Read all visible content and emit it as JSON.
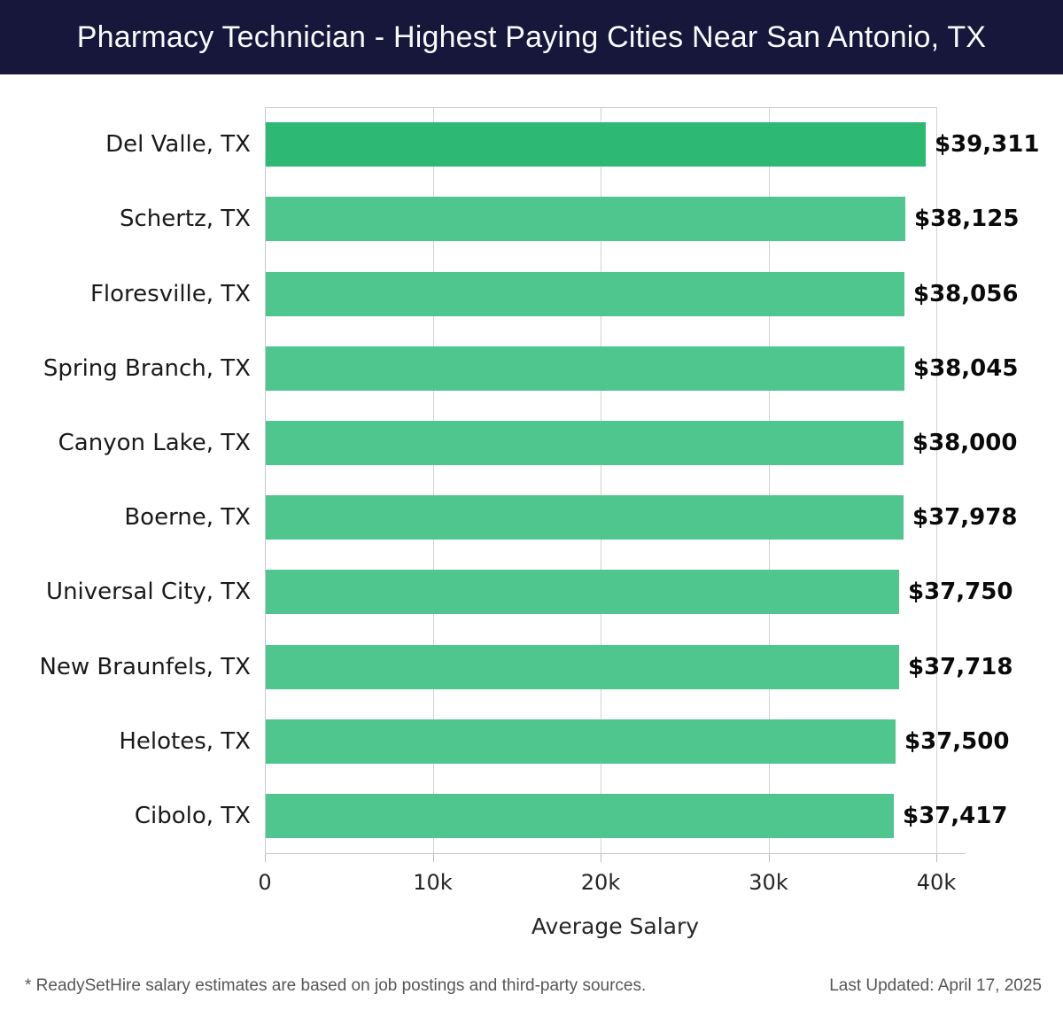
{
  "header": {
    "title": "Pharmacy Technician - Highest Paying Cities Near San Antonio, TX",
    "bg_color": "#16173a",
    "text_color": "#fafaff"
  },
  "chart_data": {
    "type": "bar",
    "orientation": "horizontal",
    "categories": [
      "Del Valle, TX",
      "Schertz, TX",
      "Floresville, TX",
      "Spring Branch, TX",
      "Canyon Lake, TX",
      "Boerne, TX",
      "Universal City, TX",
      "New Braunfels, TX",
      "Helotes, TX",
      "Cibolo, TX"
    ],
    "values": [
      39311,
      38125,
      38056,
      38045,
      38000,
      37978,
      37750,
      37718,
      37500,
      37417
    ],
    "value_labels": [
      "$39,311",
      "$38,125",
      "$38,056",
      "$38,045",
      "$38,000",
      "$37,978",
      "$37,750",
      "$37,718",
      "$37,500",
      "$37,417"
    ],
    "title": "",
    "xlabel": "Average Salary",
    "ylabel": "",
    "xlim": [
      0,
      40000
    ],
    "xticks": [
      0,
      10000,
      20000,
      30000,
      40000
    ],
    "xtick_labels": [
      "0",
      "10k",
      "20k",
      "30k",
      "40k"
    ],
    "grid": true,
    "legend": false,
    "highlight_color": "#2db873",
    "bar_color": "#4fc68d"
  },
  "footer": {
    "note": "* ReadySetHire salary estimates are based on job postings and third-party sources.",
    "last_updated": "Last Updated: April 17, 2025"
  }
}
